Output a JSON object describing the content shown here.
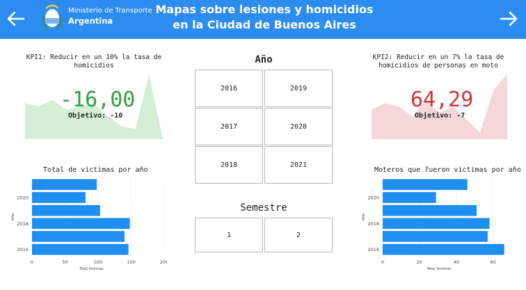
{
  "header": {
    "logo_line1": "Ministerio de Transporte",
    "logo_line2": "Argentina",
    "title_line1": "Mapas sobre lesiones y homicidios",
    "title_line2": "en la Ciudad de Buenos Aires",
    "prev_icon": "arrow-left-icon",
    "next_icon": "arrow-right-icon",
    "bg_color": "#2d8cf0"
  },
  "kpi1": {
    "title_line1": "KPI1: Reducir en un 10% la tasa de",
    "title_line2": "homicidios",
    "value": "-16,00",
    "mark": "✓",
    "target": "Objetivo: -10",
    "value_color": "#2ea043",
    "area_color": "#d4efd6",
    "trend": [
      0.55,
      0.5,
      0.6,
      0.45,
      0.5,
      0.55,
      0.35,
      0.2,
      0.15,
      1.0,
      0.0
    ]
  },
  "kpi2": {
    "title_line1": "KPI2: Reducir en un 7% la tasa de",
    "title_line2": "homicidios de personas en moto",
    "value": "64,29",
    "mark": "!",
    "target": "Objetivo: -7",
    "value_color": "#d13438",
    "area_color": "#f5d7d9",
    "trend": [
      0.45,
      0.55,
      0.5,
      0.35,
      0.6,
      0.4,
      0.5,
      0.3,
      0.1,
      0.75,
      1.0
    ]
  },
  "year_slicer": {
    "title": "Año",
    "options": [
      "2016",
      "2019",
      "2017",
      "2020",
      "2018",
      "2021"
    ]
  },
  "semester_slicer": {
    "title": "Semestre",
    "options": [
      "1",
      "2"
    ]
  },
  "chart_data": [
    {
      "type": "bar",
      "orientation": "horizontal",
      "title": "Total de victimas por año",
      "xlabel": "Total Victimas",
      "ylabel": "Año",
      "categories": [
        "",
        "2020",
        "",
        "2018",
        "",
        "2016"
      ],
      "values": [
        98,
        81,
        103,
        148,
        140,
        146
      ],
      "xlim": [
        0,
        200
      ],
      "xticks": [
        0,
        50,
        100,
        150,
        200
      ],
      "bar_color": "#1f8ef1",
      "grid": true
    },
    {
      "type": "bar",
      "orientation": "horizontal",
      "title": "Moteros que fueron victimas por año",
      "xlabel": "Total Victimas",
      "ylabel": "Año",
      "categories": [
        "",
        "2020",
        "",
        "2018",
        "",
        "2016"
      ],
      "values": [
        46,
        29,
        51,
        58,
        57,
        66
      ],
      "xlim": [
        0,
        68
      ],
      "xticks": [
        0,
        20,
        40,
        60
      ],
      "bar_color": "#1f8ef1",
      "grid": true
    }
  ]
}
